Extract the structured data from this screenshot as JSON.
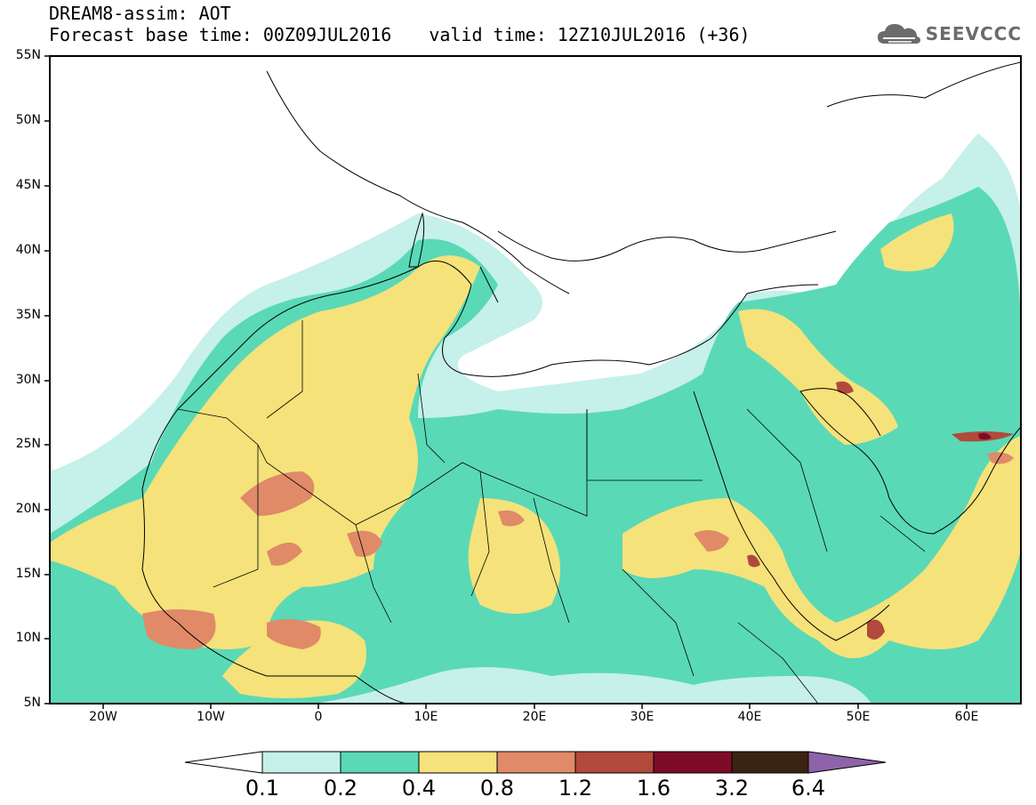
{
  "title": {
    "line1": "DREAM8-assim: AOT",
    "base_time": "Forecast base time: 00Z09JUL2016",
    "valid_time": "valid time: 12Z10JUL2016 (+36)"
  },
  "logo": {
    "text": "SEEVCCC",
    "icon": "cloud-icon"
  },
  "axes": {
    "lat_labels": [
      "55N",
      "50N",
      "45N",
      "40N",
      "35N",
      "30N",
      "25N",
      "20N",
      "15N",
      "10N",
      "5N"
    ],
    "lon_labels": [
      "20W",
      "10W",
      "0",
      "10E",
      "20E",
      "30E",
      "40E",
      "50E",
      "60E"
    ]
  },
  "map": {
    "extent": {
      "lon_min": -25,
      "lon_max": 65,
      "lat_min": 5,
      "lat_max": 55
    },
    "field": "Aerosol Optical Thickness (AOT)"
  },
  "colorbar": {
    "levels": [
      "0.1",
      "0.2",
      "0.4",
      "0.8",
      "1.2",
      "1.6",
      "3.2",
      "6.4"
    ],
    "colors": [
      "#c6f0ea",
      "#5ad9b6",
      "#f5e27a",
      "#e08a68",
      "#b1493c",
      "#7e0b27",
      "#3b2311",
      "#8e63aa"
    ]
  }
}
